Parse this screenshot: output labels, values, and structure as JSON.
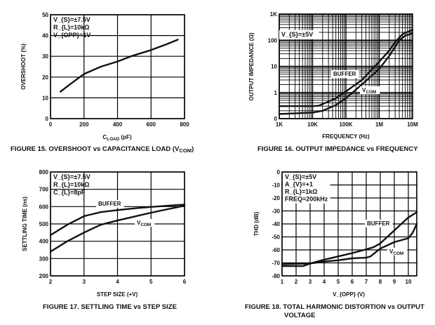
{
  "chart_data": [
    {
      "type": "line",
      "title": "FIGURE 15.  OVERSHOOT vs CAPACITANCE LOAD (V_{COM})",
      "xlabel": "C_{LOAD} (pF)",
      "ylabel": "OVERSHOOT (%)",
      "xscale": "linear",
      "yscale": "linear",
      "xlim": [
        0,
        800
      ],
      "ylim": [
        0,
        50
      ],
      "xticks": [
        0,
        200,
        400,
        600,
        800
      ],
      "xtick_labels": [
        "0",
        "200",
        "400",
        "600",
        "800"
      ],
      "yticks": [
        0,
        10,
        20,
        30,
        40,
        50
      ],
      "ytick_labels": [
        "0",
        "10",
        "20",
        "30",
        "40",
        "50"
      ],
      "grid": true,
      "annotations": [
        "V_{S}=±7.5V",
        "R_{L}=10kΩ",
        "V_{OPP}=1V"
      ],
      "series": [
        {
          "name": "",
          "x": [
            60,
            100,
            150,
            200,
            300,
            400,
            480,
            600,
            700,
            760
          ],
          "y": [
            13,
            15.5,
            18.5,
            21.5,
            25,
            27.5,
            30,
            33,
            36,
            38
          ]
        }
      ]
    },
    {
      "type": "line",
      "title": "FIGURE 16.  OUTPUT IMPEDANCE vs FREQUENCY",
      "xlabel": "FREQUENCY (Hz)",
      "ylabel": "OUTPUT IMPEDANCE (Ω)",
      "xscale": "log",
      "yscale": "log",
      "xlim": [
        1000,
        10000000
      ],
      "ylim": [
        0.1,
        1000
      ],
      "xticks": [
        1000,
        10000,
        100000,
        1000000,
        10000000
      ],
      "xtick_labels": [
        "1K",
        "10K",
        "100K",
        "1M",
        "10M"
      ],
      "yticks": [
        0.1,
        1,
        10,
        100,
        1000
      ],
      "ytick_labels": [
        "0",
        "1",
        "10",
        "100",
        "1K"
      ],
      "grid": true,
      "annotations": [
        "V_{S}=±5V"
      ],
      "series": [
        {
          "name": "BUFFER",
          "x": [
            1000,
            10000,
            15000,
            30000,
            50000,
            100000,
            300000,
            1000000,
            2000000,
            3000000,
            5000000,
            10000000
          ],
          "y": [
            0.3,
            0.3,
            0.31,
            0.45,
            0.6,
            1.1,
            3,
            15,
            40,
            85,
            170,
            250
          ]
        },
        {
          "name": "V_{COM}",
          "x": [
            1000,
            10000,
            20000,
            50000,
            100000,
            300000,
            1000000,
            2000000,
            4000000,
            6000000,
            10000000
          ],
          "y": [
            0.15,
            0.17,
            0.2,
            0.33,
            0.6,
            2,
            8,
            25,
            100,
            150,
            180
          ]
        }
      ]
    },
    {
      "type": "line",
      "title": "FIGURE 17.  SETTLING TIME vs STEP SIZE",
      "xlabel": "STEP SIZE (+V)",
      "ylabel": "SETTLING TIME (ns)",
      "xscale": "linear",
      "yscale": "linear",
      "xlim": [
        2,
        6
      ],
      "ylim": [
        200,
        800
      ],
      "xticks": [
        2,
        3,
        4,
        5,
        6
      ],
      "xtick_labels": [
        "2",
        "3",
        "4",
        "5",
        "6"
      ],
      "yticks": [
        200,
        300,
        400,
        500,
        600,
        700,
        800
      ],
      "ytick_labels": [
        "200",
        "300",
        "400",
        "500",
        "600",
        "700",
        "800"
      ],
      "grid": true,
      "annotations": [
        "V_{S}=±7.5V",
        "R_{L}=10kΩ",
        "C_{L}=8pF"
      ],
      "series": [
        {
          "name": "BUFFER",
          "x": [
            2,
            2.5,
            3,
            3.5,
            4,
            4.5,
            5,
            5.5,
            6
          ],
          "y": [
            435,
            495,
            545,
            568,
            580,
            590,
            598,
            605,
            612
          ]
        },
        {
          "name": "V_{COM}",
          "x": [
            2,
            2.5,
            3,
            3.5,
            4,
            4.5,
            5,
            5.5,
            6
          ],
          "y": [
            340,
            400,
            450,
            495,
            520,
            542,
            565,
            585,
            605
          ]
        }
      ]
    },
    {
      "type": "line",
      "title": "FIGURE 18.  TOTAL HARMONIC DISTORTION vs OUTPUT",
      "title_line2": "VOLTAGE",
      "xlabel": "V_{OPP} (V)",
      "ylabel": "THD (dB)",
      "xscale": "linear",
      "yscale": "linear",
      "xlim": [
        1,
        10.6
      ],
      "ylim": [
        -80,
        0
      ],
      "xticks": [
        1,
        2,
        3,
        4,
        5,
        6,
        7,
        8,
        9,
        10
      ],
      "xtick_labels": [
        "1",
        "2",
        "3",
        "4",
        "5",
        "6",
        "7",
        "8",
        "9",
        "10"
      ],
      "yticks": [
        -80,
        -70,
        -60,
        -50,
        -40,
        -30,
        -20,
        -10,
        0
      ],
      "ytick_labels": [
        "-80",
        "-70",
        "-60",
        "-50",
        "-40",
        "-30",
        "-20",
        "-10",
        "0"
      ],
      "grid": true,
      "annotations": [
        "V_{S}=±5V",
        "A_{V}=+1",
        "R_{L}=1kΩ",
        "FREQ=200kHz"
      ],
      "series": [
        {
          "name": "BUFFER",
          "x": [
            1,
            2.5,
            3,
            4,
            5,
            6,
            7,
            7.5,
            8,
            9,
            10,
            10.6
          ],
          "y": [
            -72.5,
            -72.5,
            -70.5,
            -67.5,
            -65,
            -62.5,
            -59.5,
            -58,
            -55,
            -45,
            -35,
            -31
          ]
        },
        {
          "name": "V_{COM}",
          "x": [
            1,
            3,
            4,
            5,
            6,
            7,
            7.3,
            8,
            9,
            10,
            10.3,
            10.6
          ],
          "y": [
            -71,
            -70.5,
            -69,
            -68,
            -66.5,
            -66,
            -65,
            -59,
            -54,
            -51,
            -47,
            -40
          ]
        }
      ]
    }
  ]
}
